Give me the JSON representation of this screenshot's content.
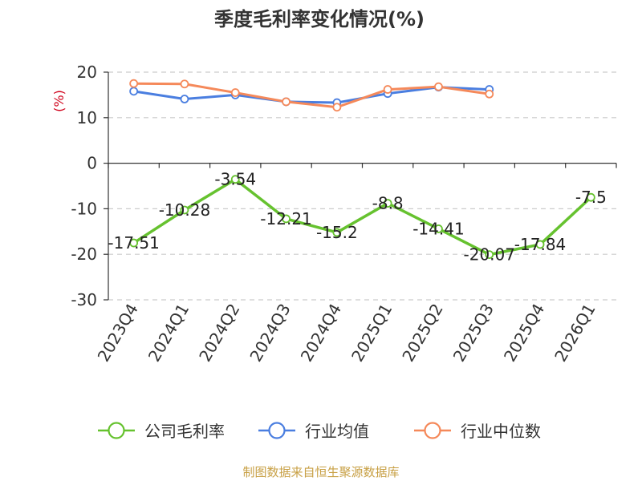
{
  "chart_data": {
    "type": "line",
    "title": "季度毛利率变化情况(%)",
    "ylabel": "(%)",
    "categories": [
      "2023Q4",
      "2024Q1",
      "2024Q2",
      "2024Q3",
      "2024Q4",
      "2025Q1",
      "2025Q2",
      "2025Q3",
      "2025Q4",
      "2026Q1"
    ],
    "yticks": [
      "20",
      "10",
      "0",
      "-10",
      "-20",
      "-30"
    ],
    "ylim": [
      -30,
      20
    ],
    "grid": true,
    "legend_position": "bottom",
    "series": [
      {
        "name": "公司毛利率",
        "color": "#66c22f",
        "values": [
          -17.51,
          -10.28,
          -3.54,
          -12.21,
          -15.2,
          -8.8,
          -14.41,
          -20.07,
          -17.84,
          -7.5
        ],
        "labels": [
          "-17.51",
          "-10.28",
          "-3.54",
          "-12.21",
          "-15.2",
          "-8.8",
          "-14.41",
          "-20.07",
          "-17.84",
          "-7.5"
        ]
      },
      {
        "name": "行业均值",
        "color": "#4a7ee0",
        "values": [
          15.8,
          14.1,
          15.0,
          13.5,
          13.3,
          15.3,
          16.7,
          16.2,
          null,
          null
        ]
      },
      {
        "name": "行业中位数",
        "color": "#f5895a",
        "values": [
          17.5,
          17.4,
          15.5,
          13.5,
          12.3,
          16.2,
          16.8,
          15.2,
          null,
          null
        ]
      }
    ],
    "source": "制图数据来自恒生聚源数据库",
    "colors": {
      "unit": "#d0021b",
      "source": "#c8a045",
      "grid": "#cccccc",
      "axis": "#333333"
    }
  }
}
